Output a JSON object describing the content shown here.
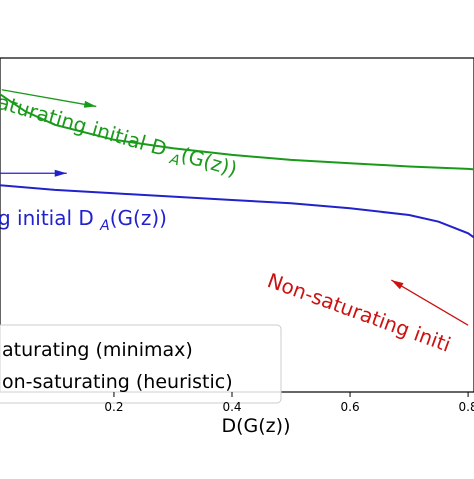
{
  "chart_data": {
    "type": "line",
    "xlabel": "D(G(z))",
    "x_ticks": [
      "0.2",
      "0.4",
      "0.6",
      "0.8"
    ],
    "x_tick_values": [
      0.2,
      0.4,
      0.6,
      0.8
    ],
    "xlim": [
      0.0,
      0.82
    ],
    "ylim": [
      0.0,
      1.0
    ],
    "grid": false,
    "legend_position": "bottom-left",
    "series": [
      {
        "name": "saturating (minimax)",
        "color": "#2222cc",
        "x": [
          0.0,
          0.1,
          0.2,
          0.3,
          0.4,
          0.5,
          0.6,
          0.7,
          0.75,
          0.8,
          0.82
        ],
        "y": [
          0.62,
          0.605,
          0.595,
          0.585,
          0.575,
          0.565,
          0.55,
          0.53,
          0.51,
          0.475,
          0.45
        ]
      },
      {
        "name": "non-saturating (heuristic)",
        "color": "#1a9a1a",
        "x": [
          0.0,
          0.05,
          0.1,
          0.2,
          0.3,
          0.4,
          0.5,
          0.6,
          0.7,
          0.8,
          0.82
        ],
        "y": [
          0.9,
          0.84,
          0.8,
          0.755,
          0.73,
          0.71,
          0.695,
          0.685,
          0.675,
          0.668,
          0.665
        ]
      }
    ],
    "annotations": [
      {
        "text": "aturating initial D_A(G(z))",
        "color": "#1a9a1a",
        "arrow": {
          "x0": 0.01,
          "y0": 0.905,
          "x1": 0.17,
          "y1": 0.855
        }
      },
      {
        "text": "g initial D_A(G(z))",
        "color": "#2222cc",
        "arrow": {
          "x0": 0.0,
          "y0": 0.655,
          "x1": 0.12,
          "y1": 0.655
        }
      },
      {
        "text": "Non-saturating initi",
        "color": "#cc1111",
        "arrow": {
          "x0": 0.8,
          "y0": 0.2,
          "x1": 0.67,
          "y1": 0.335
        }
      }
    ],
    "legend": {
      "entries": [
        "aturating (minimax)",
        "on-saturating (heuristic)"
      ]
    }
  }
}
